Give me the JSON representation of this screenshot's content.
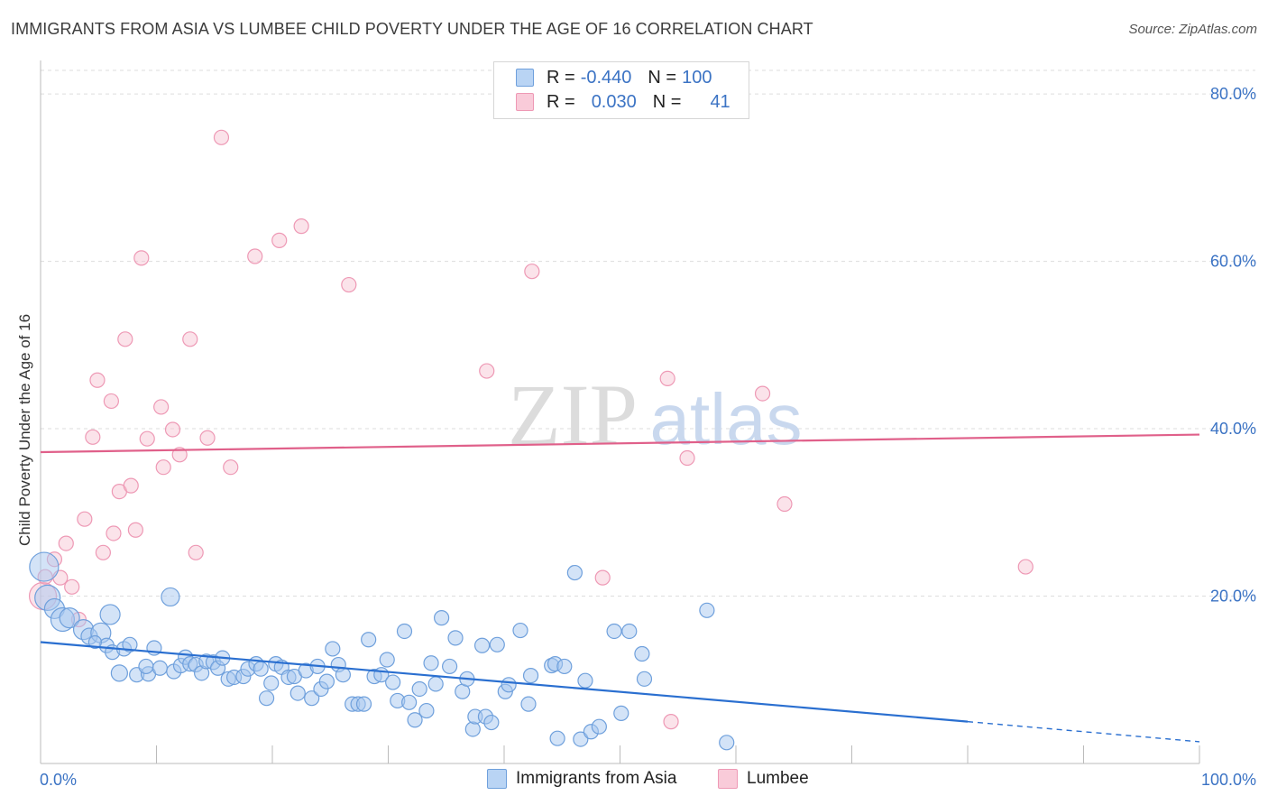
{
  "title": "IMMIGRANTS FROM ASIA VS LUMBEE CHILD POVERTY UNDER THE AGE OF 16 CORRELATION CHART",
  "source": "Source: ZipAtlas.com",
  "watermark": {
    "zip": "ZIP",
    "atlas": "atlas"
  },
  "legend_top": {
    "rows": [
      {
        "r_label": "R =",
        "r_value": "-0.440",
        "n_label": "N =",
        "n_value": "100"
      },
      {
        "r_label": "R =",
        "r_value": "0.030",
        "n_label": "N =",
        "n_value": "41"
      }
    ]
  },
  "legend_bottom": {
    "series1": "Immigrants from Asia",
    "series2": "Lumbee"
  },
  "colors": {
    "blue_fill": "#a8c8f0",
    "blue_stroke": "#6fa0dc",
    "blue_line": "#2a6fd0",
    "pink_fill": "#f7c0d0",
    "pink_stroke": "#ee99b5",
    "pink_line": "#e0608a",
    "tick_label": "#3b73c4",
    "grid": "#dddddd"
  },
  "chart_data": {
    "type": "scatter",
    "title": "IMMIGRANTS FROM ASIA VS LUMBEE CHILD POVERTY UNDER THE AGE OF 16 CORRELATION CHART",
    "xlabel": "",
    "ylabel": "Child Poverty Under the Age of 16",
    "xlim": [
      0,
      100
    ],
    "ylim": [
      0,
      84
    ],
    "x_tick_labels": [
      {
        "value": 0,
        "label": "0.0%"
      },
      {
        "value": 100,
        "label": "100.0%"
      }
    ],
    "y_tick_labels": [
      {
        "value": 20,
        "label": "20.0%"
      },
      {
        "value": 40,
        "label": "40.0%"
      },
      {
        "value": 60,
        "label": "60.0%"
      },
      {
        "value": 80,
        "label": "80.0%"
      }
    ],
    "grid": true,
    "legend_position": "bottom",
    "series": [
      {
        "name": "Immigrants from Asia",
        "points": [
          [
            0.3,
            23.5,
            16
          ],
          [
            0.6,
            19.8,
            14
          ],
          [
            1.2,
            18.5,
            11
          ],
          [
            1.9,
            17.2,
            13
          ],
          [
            2.5,
            17.4,
            11
          ],
          [
            3.7,
            16,
            11
          ],
          [
            4.2,
            15.2,
            9
          ],
          [
            5.2,
            15.6,
            11
          ],
          [
            5.7,
            14.1,
            8
          ],
          [
            4.7,
            14.5,
            7
          ],
          [
            6,
            17.8,
            11
          ],
          [
            6.2,
            13.3,
            8
          ],
          [
            6.8,
            10.8,
            9
          ],
          [
            7.2,
            13.7,
            8
          ],
          [
            7.7,
            14.2,
            8
          ],
          [
            8.3,
            10.6,
            8
          ],
          [
            9.3,
            10.7,
            8
          ],
          [
            9.1,
            11.6,
            8
          ],
          [
            9.8,
            13.8,
            8
          ],
          [
            10.3,
            11.4,
            8
          ],
          [
            11.2,
            19.9,
            10
          ],
          [
            11.5,
            11,
            8
          ],
          [
            12.1,
            11.7,
            8
          ],
          [
            12.5,
            12.7,
            8
          ],
          [
            12.9,
            11.9,
            8
          ],
          [
            13.4,
            11.8,
            8
          ],
          [
            13.9,
            10.8,
            8
          ],
          [
            14.3,
            12.2,
            8
          ],
          [
            14.9,
            12.1,
            8
          ],
          [
            15.3,
            11.4,
            8
          ],
          [
            15.7,
            12.6,
            8
          ],
          [
            16.2,
            10.1,
            8
          ],
          [
            16.7,
            10.3,
            8
          ],
          [
            17.5,
            10.4,
            8
          ],
          [
            17.9,
            11.3,
            8
          ],
          [
            18.6,
            11.9,
            8
          ],
          [
            19,
            11.3,
            8
          ],
          [
            19.5,
            7.8,
            8
          ],
          [
            19.9,
            9.6,
            8
          ],
          [
            20.3,
            11.9,
            8
          ],
          [
            20.8,
            11.5,
            8
          ],
          [
            21.4,
            10.3,
            8
          ],
          [
            21.9,
            10.4,
            8
          ],
          [
            22.2,
            8.4,
            8
          ],
          [
            22.9,
            11.1,
            8
          ],
          [
            23.4,
            7.8,
            8
          ],
          [
            23.9,
            11.6,
            8
          ],
          [
            24.2,
            8.9,
            8
          ],
          [
            24.7,
            9.8,
            8
          ],
          [
            25.2,
            13.7,
            8
          ],
          [
            25.7,
            11.8,
            8
          ],
          [
            26.1,
            10.6,
            8
          ],
          [
            26.9,
            7.1,
            8
          ],
          [
            27.4,
            7.1,
            8
          ],
          [
            27.9,
            7.1,
            8
          ],
          [
            28.3,
            14.8,
            8
          ],
          [
            28.8,
            10.4,
            8
          ],
          [
            29.4,
            10.6,
            8
          ],
          [
            29.9,
            12.4,
            8
          ],
          [
            30.4,
            9.7,
            8
          ],
          [
            30.8,
            7.5,
            8
          ],
          [
            31.4,
            15.8,
            8
          ],
          [
            31.8,
            7.3,
            8
          ],
          [
            32.3,
            5.2,
            8
          ],
          [
            32.7,
            8.9,
            8
          ],
          [
            33.3,
            6.3,
            8
          ],
          [
            33.7,
            12,
            8
          ],
          [
            34.1,
            9.5,
            8
          ],
          [
            34.6,
            17.4,
            8
          ],
          [
            35.3,
            11.6,
            8
          ],
          [
            35.8,
            15,
            8
          ],
          [
            36.4,
            8.6,
            8
          ],
          [
            36.8,
            10.1,
            8
          ],
          [
            37.3,
            4.1,
            8
          ],
          [
            37.5,
            5.6,
            8
          ],
          [
            38.1,
            14.1,
            8
          ],
          [
            38.4,
            5.6,
            8
          ],
          [
            38.9,
            4.9,
            8
          ],
          [
            39.4,
            14.2,
            8
          ],
          [
            40.1,
            8.6,
            8
          ],
          [
            40.4,
            9.4,
            8
          ],
          [
            41.4,
            15.9,
            8
          ],
          [
            42.1,
            7.1,
            8
          ],
          [
            42.3,
            10.5,
            8
          ],
          [
            44.1,
            11.7,
            8
          ],
          [
            44.4,
            11.9,
            8
          ],
          [
            44.6,
            3,
            8
          ],
          [
            45.2,
            11.6,
            8
          ],
          [
            46.1,
            22.8,
            8
          ],
          [
            46.6,
            2.9,
            8
          ],
          [
            47,
            9.9,
            8
          ],
          [
            47.5,
            3.8,
            8
          ],
          [
            48.2,
            4.4,
            8
          ],
          [
            50.1,
            6,
            8
          ],
          [
            50.8,
            15.8,
            8
          ],
          [
            51.9,
            13.1,
            8
          ],
          [
            52.1,
            10.1,
            8
          ],
          [
            57.5,
            18.3,
            8
          ],
          [
            59.2,
            2.5,
            8
          ],
          [
            49.5,
            15.8,
            8
          ]
        ]
      },
      {
        "name": "Lumbee",
        "points": [
          [
            0.2,
            20,
            15
          ],
          [
            0.4,
            22.3,
            8
          ],
          [
            1.2,
            24.4,
            8
          ],
          [
            1.7,
            22.2,
            8
          ],
          [
            2.2,
            26.3,
            8
          ],
          [
            2.7,
            21.1,
            8
          ],
          [
            3.3,
            17.2,
            8
          ],
          [
            3.8,
            29.2,
            8
          ],
          [
            4.5,
            39,
            8
          ],
          [
            4.9,
            45.8,
            8
          ],
          [
            5.4,
            25.2,
            8
          ],
          [
            6.1,
            43.3,
            8
          ],
          [
            6.3,
            27.5,
            8
          ],
          [
            6.8,
            32.5,
            8
          ],
          [
            7.3,
            50.7,
            8
          ],
          [
            7.8,
            33.2,
            8
          ],
          [
            8.2,
            27.9,
            8
          ],
          [
            8.7,
            60.4,
            8
          ],
          [
            9.2,
            38.8,
            8
          ],
          [
            10.4,
            42.6,
            8
          ],
          [
            10.6,
            35.4,
            8
          ],
          [
            11.4,
            39.9,
            8
          ],
          [
            12,
            36.9,
            8
          ],
          [
            12.9,
            50.7,
            8
          ],
          [
            13.4,
            25.2,
            8
          ],
          [
            14.4,
            38.9,
            8
          ],
          [
            15.6,
            74.8,
            8
          ],
          [
            16.4,
            35.4,
            8
          ],
          [
            18.5,
            60.6,
            8
          ],
          [
            20.6,
            62.5,
            8
          ],
          [
            22.5,
            64.2,
            8
          ],
          [
            26.6,
            57.2,
            8
          ],
          [
            38.5,
            46.9,
            8
          ],
          [
            42.4,
            58.8,
            8
          ],
          [
            48.5,
            22.2,
            8
          ],
          [
            54.1,
            46,
            8
          ],
          [
            54.4,
            5,
            8
          ],
          [
            55.8,
            36.5,
            8
          ],
          [
            62.3,
            44.2,
            8
          ],
          [
            64.2,
            31,
            8
          ],
          [
            85,
            23.5,
            8
          ]
        ]
      }
    ],
    "trend_lines": [
      {
        "series": "Immigrants from Asia",
        "x": [
          0,
          80
        ],
        "y": [
          14.5,
          5
        ],
        "dashed_x": [
          80,
          100
        ],
        "dashed_y": [
          5,
          2.6
        ]
      },
      {
        "series": "Lumbee",
        "x": [
          0,
          100
        ],
        "y": [
          37.2,
          39.3
        ]
      }
    ]
  }
}
